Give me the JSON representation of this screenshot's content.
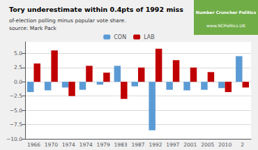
{
  "chart_data": {
    "type": "bar",
    "title": "Tory underestimate within 0.4pts of 1992 miss",
    "subtitle": "of-election polling minus popular vote share.",
    "source": "source: Mark Pack",
    "annotations": [
      "Number Cruncher Politics",
      "www.NCPolitics.UK"
    ],
    "categories": [
      "1966",
      "1970",
      "1974",
      "1974",
      "1979",
      "1983",
      "1987",
      "1992",
      "1997",
      "2001",
      "2005",
      "2010",
      "2"
    ],
    "series": [
      {
        "name": "CON",
        "color": "#5B9BD5",
        "values": [
          -1.8,
          -1.5,
          -1.0,
          -1.4,
          -0.5,
          2.8,
          -0.8,
          -8.5,
          -1.4,
          -1.5,
          -1.4,
          -1.1,
          4.5
        ]
      },
      {
        "name": "LAB",
        "color": "#C00000",
        "values": [
          3.2,
          5.5,
          -2.5,
          2.8,
          1.6,
          -3.0,
          2.5,
          5.8,
          3.8,
          2.5,
          1.7,
          -1.8,
          -1.0
        ]
      }
    ],
    "ylim": [
      -10,
      7
    ],
    "yticks": [
      {
        "value": -10,
        "label": "−10.0"
      },
      {
        "value": -7.5,
        "label": "−7.5"
      },
      {
        "value": -5,
        "label": "−5.0"
      },
      {
        "value": -2.5,
        "label": "−2.5"
      },
      {
        "value": 0,
        "label": "0.0"
      },
      {
        "value": 2.5,
        "label": "2.5"
      },
      {
        "value": 5,
        "label": "5.0"
      }
    ],
    "grid": true,
    "legend": "top"
  }
}
